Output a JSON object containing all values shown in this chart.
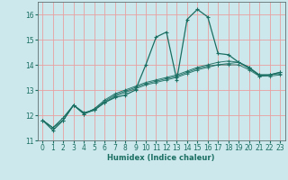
{
  "xlabel": "Humidex (Indice chaleur)",
  "bg_color": "#cce8ec",
  "grid_color": "#e8a0a0",
  "line_color": "#1a6e62",
  "xlim": [
    -0.5,
    23.5
  ],
  "ylim": [
    11,
    16.5
  ],
  "yticks": [
    11,
    12,
    13,
    14,
    15,
    16
  ],
  "xticks": [
    0,
    1,
    2,
    3,
    4,
    5,
    6,
    7,
    8,
    9,
    10,
    11,
    12,
    13,
    14,
    15,
    16,
    17,
    18,
    19,
    20,
    21,
    22,
    23
  ],
  "series": [
    [
      11.8,
      11.4,
      11.8,
      12.4,
      12.1,
      12.2,
      12.5,
      12.7,
      12.8,
      13.0,
      14.0,
      15.1,
      15.3,
      13.4,
      15.8,
      16.2,
      15.9,
      14.45,
      14.4,
      14.1,
      13.9,
      13.6,
      13.6,
      13.7
    ],
    [
      11.8,
      11.5,
      11.8,
      12.4,
      12.05,
      12.2,
      12.5,
      12.75,
      12.9,
      13.05,
      13.2,
      13.3,
      13.4,
      13.5,
      13.65,
      13.8,
      13.9,
      14.0,
      14.05,
      14.1,
      13.9,
      13.55,
      13.6,
      13.7
    ],
    [
      11.8,
      11.5,
      11.9,
      12.4,
      12.05,
      12.25,
      12.55,
      12.8,
      12.95,
      13.1,
      13.25,
      13.35,
      13.45,
      13.55,
      13.7,
      13.85,
      13.95,
      14.0,
      14.0,
      14.0,
      13.8,
      13.55,
      13.55,
      13.6
    ],
    [
      11.8,
      11.5,
      11.9,
      12.4,
      12.05,
      12.25,
      12.6,
      12.85,
      13.0,
      13.15,
      13.3,
      13.4,
      13.5,
      13.6,
      13.75,
      13.9,
      14.0,
      14.1,
      14.15,
      14.1,
      13.85,
      13.6,
      13.6,
      13.65
    ]
  ]
}
